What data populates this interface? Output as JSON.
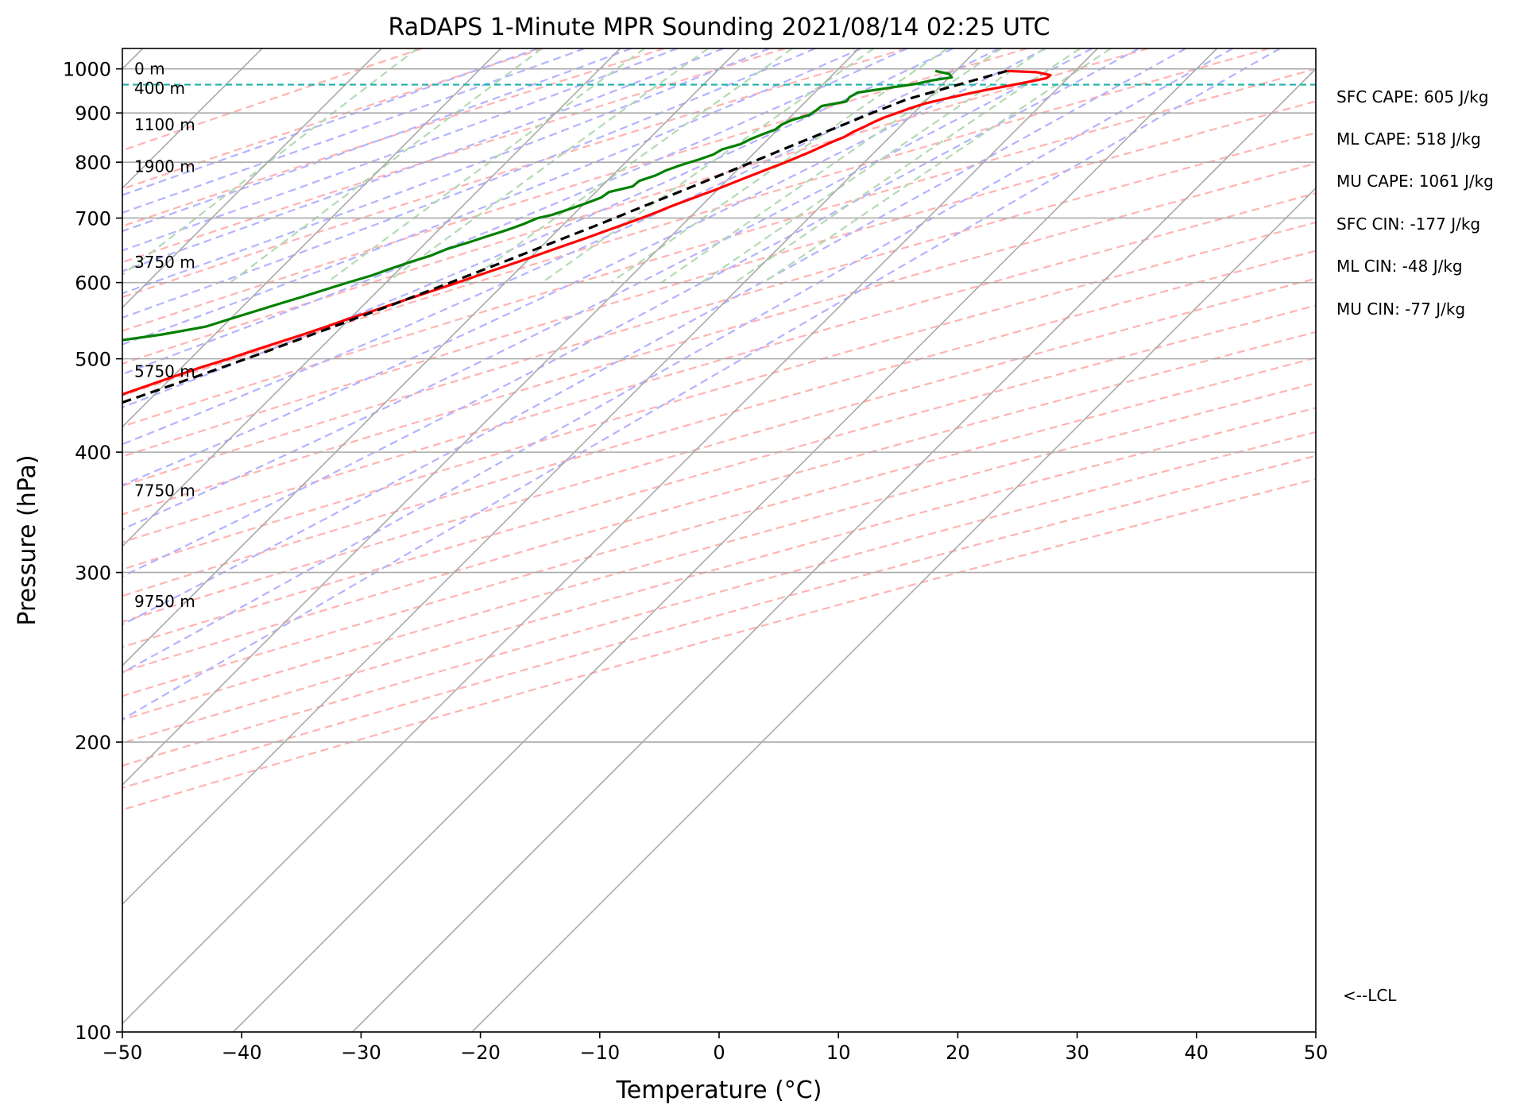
{
  "chart_data": {
    "type": "line",
    "title": "RaDAPS 1-Minute MPR Sounding 2021/08/14 02:25 UTC",
    "xlabel": "Temperature (°C)",
    "ylabel": "Pressure (hPa)",
    "xlim": [
      -50,
      50
    ],
    "ylim": [
      1050,
      100
    ],
    "y_scale": "log",
    "skew": "skew-T log-P",
    "x_ticks": [
      -50,
      -40,
      -30,
      -20,
      -10,
      0,
      10,
      20,
      30,
      40,
      50
    ],
    "x_tick_labels": [
      "−50",
      "−40",
      "−30",
      "−20",
      "−10",
      "0",
      "10",
      "20",
      "30",
      "40",
      "50"
    ],
    "y_ticks": [
      100,
      200,
      300,
      400,
      500,
      600,
      700,
      800,
      900,
      1000
    ],
    "y_tick_labels": [
      "100",
      "200",
      "300",
      "400",
      "500",
      "600",
      "700",
      "800",
      "900",
      "1000"
    ],
    "grid": true,
    "colors": {
      "temperature": "#ff0000",
      "dewpoint": "#008000",
      "parcel": "#000000",
      "lcl": "#20b2aa",
      "isotherm": "#aaaaaa",
      "dry_adiabat": "#ffb3b3",
      "moist_adiabat": "#b3b3ff",
      "mixing_ratio": "#b3dab3"
    },
    "series": [
      {
        "key": "temperature",
        "pressure": [
          995,
          992,
          985,
          978,
          970,
          960,
          950,
          940,
          930,
          920,
          910,
          900,
          890,
          880,
          870,
          860,
          850,
          840,
          830,
          820,
          810,
          800,
          790,
          780,
          770,
          760,
          750,
          740,
          730,
          720,
          710,
          700,
          690,
          680,
          670,
          660,
          650,
          640,
          630,
          620,
          610,
          600,
          590,
          580,
          570,
          560,
          550,
          540,
          530,
          520,
          510,
          500,
          490,
          480,
          470,
          460,
          450,
          440,
          430,
          420,
          410,
          400,
          390,
          380,
          370,
          360,
          350,
          340,
          330,
          320,
          310,
          300,
          290,
          280
        ],
        "values": [
          24.3,
          26.9,
          28.3,
          28.2,
          27.1,
          25.6,
          24.0,
          22.6,
          21.3,
          20.1,
          19.3,
          18.6,
          17.9,
          17.4,
          17.0,
          16.5,
          16.2,
          15.6,
          15.1,
          14.6,
          14.0,
          13.4,
          12.7,
          12.0,
          11.3,
          10.6,
          9.9,
          9.1,
          8.3,
          7.5,
          6.8,
          6.0,
          5.1,
          4.2,
          3.3,
          2.3,
          1.3,
          0.3,
          -0.7,
          -1.8,
          -2.9,
          -4.0,
          -5.2,
          -6.4,
          -7.6,
          -8.8,
          -10.1,
          -11.3,
          -12.6,
          -14.0,
          -15.4,
          -16.8,
          -18.4,
          -19.8,
          -21.2,
          -22.6,
          -24.0,
          -25.5,
          -27.0,
          -28.5,
          -30.0,
          -31.8,
          -33.6,
          -35.4,
          -37.2,
          -39.0,
          -40.9,
          -42.7,
          -44.6,
          -46.5,
          -48.4,
          -50.4,
          -52.4,
          -54.4
        ]
      },
      {
        "key": "dewpoint",
        "pressure": [
          995,
          988,
          980,
          972,
          965,
          955,
          945,
          935,
          925,
          915,
          905,
          895,
          885,
          875,
          865,
          855,
          845,
          835,
          825,
          815,
          805,
          795,
          785,
          775,
          765,
          755,
          745,
          735,
          725,
          715,
          705,
          700,
          690,
          680,
          670,
          660,
          650,
          640,
          630,
          620,
          610,
          600,
          590,
          580,
          570,
          560,
          550,
          540,
          530,
          520,
          510,
          500,
          490,
          480,
          470,
          460,
          450,
          440,
          430,
          420,
          410,
          400,
          390,
          380,
          370,
          360,
          350,
          340,
          330,
          320,
          310,
          300,
          290,
          280
        ],
        "values": [
          18.3,
          19.7,
          20.2,
          18.7,
          17.8,
          15.7,
          13.6,
          13.3,
          13.4,
          11.7,
          11.6,
          11.4,
          10.4,
          9.9,
          9.8,
          9.1,
          8.5,
          8.1,
          7.0,
          6.7,
          5.9,
          4.9,
          4.1,
          3.6,
          2.7,
          2.6,
          1.1,
          0.9,
          0.1,
          -0.8,
          -1.8,
          -2.7,
          -3.4,
          -4.3,
          -5.4,
          -6.5,
          -7.7,
          -8.5,
          -9.7,
          -10.8,
          -11.8,
          -13.2,
          -14.5,
          -15.8,
          -17.2,
          -18.6,
          -20.0,
          -21.4,
          -24.4,
          -28.4,
          -32.1,
          -35.6,
          -39.0,
          -42.4,
          -45.7,
          -48.8,
          -51.5,
          -52.6,
          -54.4,
          -55.6,
          -57.6,
          -59.8,
          -61.0,
          -63.3,
          -65.6,
          -66.9,
          -69.3,
          -70.9,
          -72.8,
          -74.8,
          -75.2,
          -76.4,
          -78.6,
          -80.5
        ]
      },
      {
        "key": "parcel",
        "pressure": [
          995,
          960,
          930,
          900,
          870,
          840,
          810,
          780,
          750,
          720,
          690,
          660,
          630,
          600,
          570,
          540,
          510,
          480,
          450,
          420,
          390,
          360,
          330,
          300,
          280
        ],
        "values": [
          24.3,
          21.1,
          18.3,
          16.5,
          14.8,
          13.0,
          11.2,
          9.3,
          7.3,
          5.2,
          3.0,
          0.6,
          -1.9,
          -4.6,
          -7.5,
          -10.7,
          -14.1,
          -17.9,
          -22.1,
          -26.7,
          -31.8,
          -37.6,
          -44.0,
          -51.3,
          -57.3
        ]
      }
    ],
    "lcl": {
      "pressure": 963,
      "label": "<--LCL"
    },
    "height_labels": [
      {
        "pressure": 280,
        "text": "9750 m"
      },
      {
        "pressure": 365,
        "text": "7750 m"
      },
      {
        "pressure": 485,
        "text": "5750 m"
      },
      {
        "pressure": 630,
        "text": "3750 m"
      },
      {
        "pressure": 792,
        "text": "1900 m"
      },
      {
        "pressure": 875,
        "text": "1100 m"
      },
      {
        "pressure": 955,
        "text": "400 m"
      },
      {
        "pressure": 1000,
        "text": "0 m"
      }
    ],
    "annotations": [
      "SFC CAPE: 605 J/kg",
      "ML CAPE: 518 J/kg",
      "MU CAPE: 1061 J/kg",
      "SFC CIN: -177 J/kg",
      "ML CIN: -48 J/kg",
      "MU CIN: -77 J/kg"
    ]
  }
}
